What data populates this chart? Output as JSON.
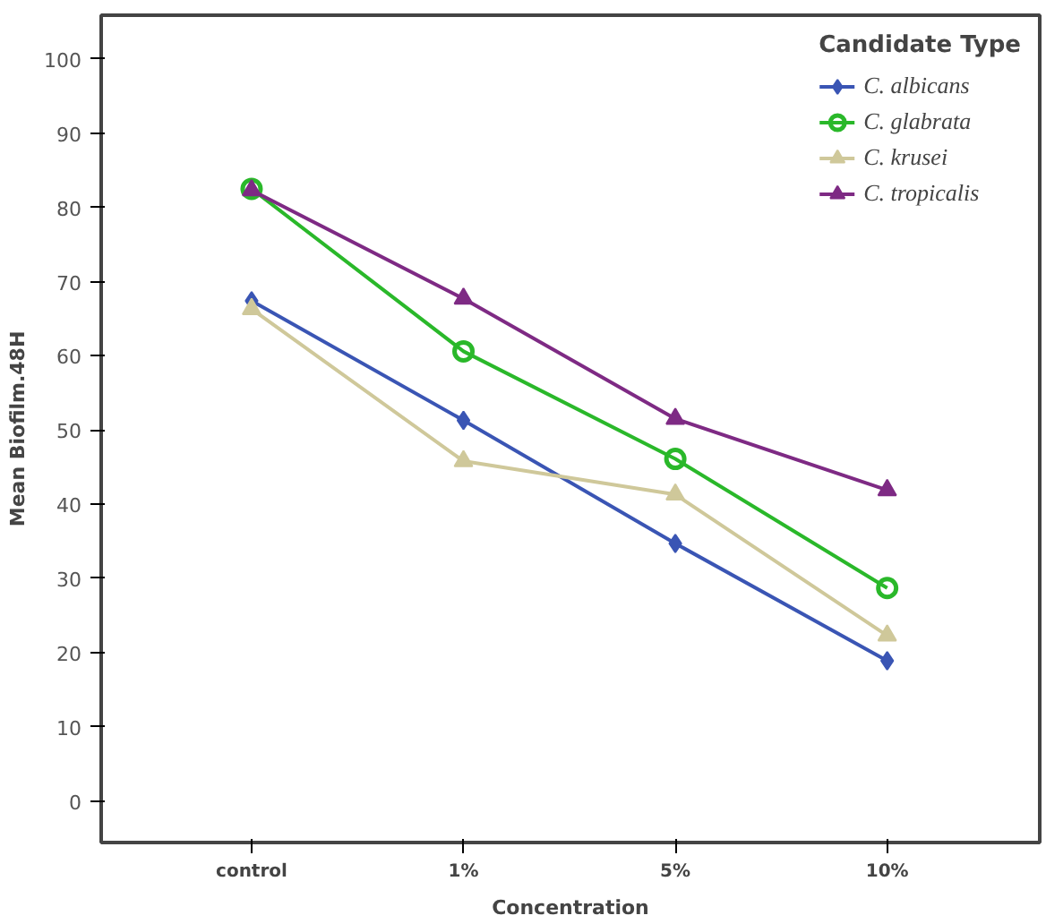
{
  "chart_data": {
    "type": "line",
    "xlabel": "Concentration",
    "ylabel": "Mean Biofilm.48H",
    "legend_title": "Candidate Type",
    "categories": [
      "control",
      "1%",
      "5%",
      "10%"
    ],
    "series": [
      {
        "name": "C. albicans",
        "color": "#3a55b4",
        "marker": "diamond",
        "values": [
          67.4,
          51.3,
          34.7,
          18.9
        ]
      },
      {
        "name": "C. glabrata",
        "color": "#2ab82a",
        "marker": "circle",
        "values": [
          82.5,
          60.6,
          46.1,
          28.7
        ]
      },
      {
        "name": "C. krusei",
        "color": "#cfc89a",
        "marker": "triangle",
        "values": [
          66.3,
          45.8,
          41.3,
          22.3
        ]
      },
      {
        "name": "C. tropicalis",
        "color": "#7e2a84",
        "marker": "triangle",
        "values": [
          82.3,
          67.7,
          51.5,
          41.9
        ]
      }
    ],
    "ylim": [
      -5.6,
      105.9
    ],
    "yticks": [
      0,
      10,
      20,
      30,
      40,
      50,
      60,
      70,
      80,
      90,
      100
    ],
    "grid": false,
    "legend": "top right"
  }
}
